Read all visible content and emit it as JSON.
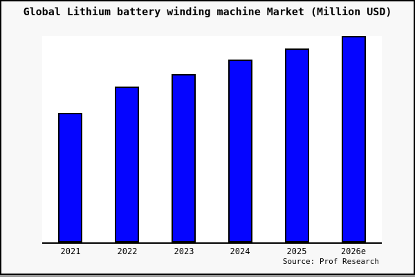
{
  "chart_data": {
    "type": "bar",
    "title": "Global Lithium battery winding machine Market (Million USD)",
    "categories": [
      "2021",
      "2022",
      "2023",
      "2024",
      "2025",
      "2026e"
    ],
    "values": [
      62.9,
      75.4,
      81.6,
      88.5,
      93.9,
      100
    ],
    "values_note": "No y-axis scale or gridlines are shown in the chart; values are bar heights relative to the tallest bar (2026e = 100).",
    "xlabel": "",
    "ylabel": "",
    "grid": false,
    "legend": null,
    "bar_color": "#0505ff",
    "bar_border_color": "#000000",
    "axis_color": "#000000",
    "plot_background": "#ffffff",
    "page_background": "#f8f8f8",
    "source": "Source: Prof Research"
  }
}
